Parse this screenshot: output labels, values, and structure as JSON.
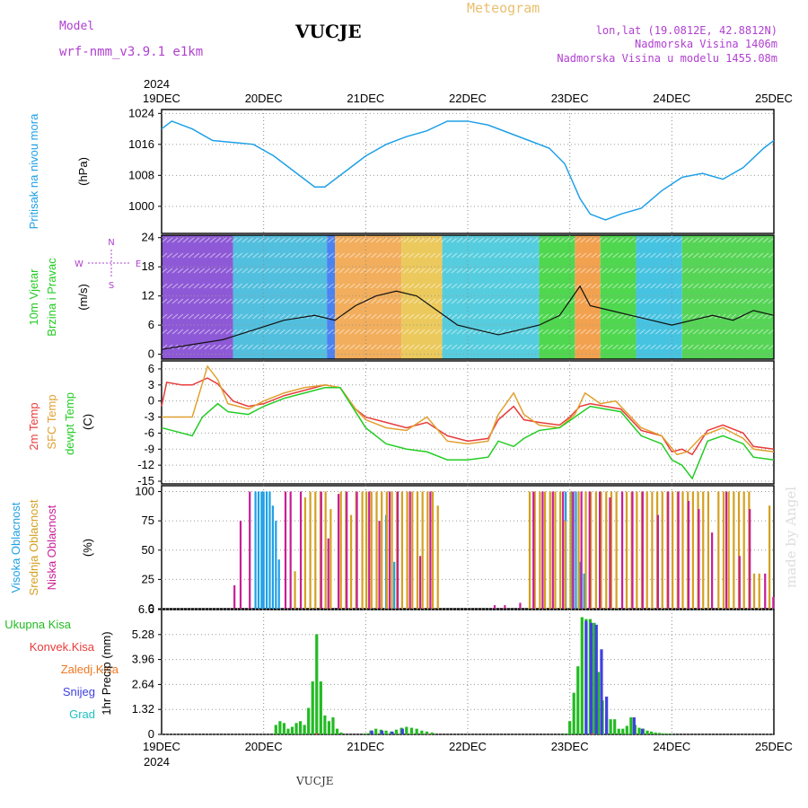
{
  "header": {
    "model_label": "Model",
    "model_name": "wrf-nmm_v3.9.1  e1km",
    "station": "VUCJE",
    "meteogram": "Meteogram",
    "lonlat": "lon,lat (19.0812E, 42.8812N)",
    "elevation": "Nadmorska Visina 1406m",
    "model_elevation": "Nadmorska Visina u modelu 1455.08m",
    "footer_station": "VUCJE",
    "watermark": "made by Angel"
  },
  "colors": {
    "pressure": "#1ea0e6",
    "wind_label": "#22cc22",
    "temp2m": "#e83c3c",
    "sfc_temp": "#e0a030",
    "dewpoint": "#22cc22",
    "high_cloud": "#1ea0e6",
    "mid_cloud": "#d4a020",
    "low_cloud": "#c81e96",
    "total_precip": "#22bb22",
    "conv_precip": "#e83c3c",
    "freezing_precip": "#f07820",
    "snow": "#4040e0",
    "graupel": "#20c0c0",
    "title_purple": "#b040d0",
    "meteogram_gold": "#e8c070"
  },
  "chart_data": {
    "type": "meteogram",
    "x_year_top": "2024",
    "x_year_bottom": "2024",
    "x_ticks": [
      "19DEC",
      "20DEC",
      "21DEC",
      "22DEC",
      "23DEC",
      "24DEC",
      "25DEC"
    ],
    "panels": [
      {
        "id": "pressure",
        "type": "line",
        "labels": [
          "Pritisak na nivou mora",
          "(hPa)"
        ],
        "ylim": [
          993,
          1025
        ],
        "yticks": [
          "1024",
          "1016",
          "1008",
          "1000"
        ],
        "ytick_values": [
          1024,
          1016,
          1008,
          1000
        ],
        "series": [
          {
            "x": [
              0,
              0.1,
              0.3,
              0.5,
              0.7,
              0.9,
              1.1,
              1.3,
              1.5,
              1.6,
              1.8,
              2.0,
              2.2,
              2.4,
              2.6,
              2.8,
              3.0,
              3.2,
              3.4,
              3.6,
              3.8,
              3.95,
              4.1,
              4.2,
              4.35,
              4.5,
              4.7,
              4.9,
              5.1,
              5.3,
              5.5,
              5.7,
              5.9,
              6.0
            ],
            "y": [
              1020,
              1022,
              1020,
              1017,
              1016.5,
              1016,
              1013,
              1009,
              1005,
              1005,
              1009,
              1013,
              1016,
              1018,
              1019.5,
              1022,
              1022,
              1021,
              1019,
              1017,
              1015,
              1011,
              1002,
              998,
              996.5,
              998,
              999.5,
              1004,
              1007.5,
              1008.5,
              1007,
              1010,
              1015,
              1017
            ]
          }
        ]
      },
      {
        "id": "wind",
        "type": "line",
        "labels": [
          "10m Vjetar",
          "Brzina i Pravac",
          "(m/s)"
        ],
        "compass": [
          "N",
          "W",
          "E",
          "S"
        ],
        "ylim": [
          -1,
          24.5
        ],
        "yticks": [
          "24",
          "18",
          "12",
          "6",
          "0"
        ],
        "ytick_values": [
          24,
          18,
          12,
          6,
          0
        ],
        "series": [
          {
            "name": "speed",
            "x": [
              0,
              0.3,
              0.6,
              0.9,
              1.2,
              1.5,
              1.7,
              1.9,
              2.1,
              2.3,
              2.5,
              2.7,
              2.9,
              3.1,
              3.3,
              3.5,
              3.7,
              3.9,
              4.1,
              4.2,
              4.4,
              4.6,
              4.8,
              5.0,
              5.2,
              5.4,
              5.6,
              5.8,
              6.0
            ],
            "y": [
              1,
              2,
              3,
              5,
              7,
              8,
              7,
              10,
              12,
              13,
              12,
              9,
              6,
              5,
              4,
              5,
              6,
              8,
              14,
              10,
              9,
              8,
              7,
              6,
              7,
              8,
              7,
              9,
              8
            ]
          }
        ]
      },
      {
        "id": "temperature",
        "type": "line",
        "labels": [
          "2m Temp",
          "SFC Temp",
          "dewpt Temp",
          "(C)"
        ],
        "ylim": [
          -15.5,
          7.5
        ],
        "yticks": [
          "6",
          "3",
          "0",
          "-3",
          "-6",
          "-9",
          "-12",
          "-15"
        ],
        "ytick_values": [
          6,
          3,
          0,
          -3,
          -6,
          -9,
          -12,
          -15
        ],
        "series": [
          {
            "name": "2m Temp",
            "x": [
              0,
              0.05,
              0.2,
              0.3,
              0.45,
              0.55,
              0.7,
              0.85,
              1.0,
              1.2,
              1.4,
              1.6,
              1.75,
              1.9,
              2.0,
              2.2,
              2.4,
              2.6,
              2.8,
              3.0,
              3.2,
              3.3,
              3.45,
              3.55,
              3.7,
              3.9,
              4.0,
              4.1,
              4.2,
              4.35,
              4.5,
              4.7,
              4.9,
              5.0,
              5.1,
              5.2,
              5.35,
              5.5,
              5.7,
              5.8,
              6.0
            ],
            "y": [
              -1,
              3.5,
              3,
              3,
              4.3,
              3.2,
              0,
              -1,
              -0.5,
              1,
              2,
              3,
              2.5,
              -1.5,
              -3,
              -4,
              -5,
              -4,
              -6.5,
              -7.5,
              -7,
              -3.5,
              -1,
              -3.5,
              -4,
              -4.5,
              -3,
              -1,
              -0.5,
              -1,
              -1.5,
              -5.5,
              -6.5,
              -9.5,
              -9,
              -10,
              -5.5,
              -4.5,
              -6,
              -8.5,
              -9
            ]
          },
          {
            "name": "SFC Temp",
            "x": [
              0,
              0.1,
              0.3,
              0.45,
              0.55,
              0.65,
              0.85,
              1.0,
              1.2,
              1.4,
              1.6,
              1.75,
              1.9,
              2.0,
              2.2,
              2.4,
              2.6,
              2.8,
              3.0,
              3.2,
              3.3,
              3.45,
              3.55,
              3.7,
              3.9,
              4.05,
              4.15,
              4.3,
              4.45,
              4.7,
              4.9,
              5.05,
              5.15,
              5.3,
              5.5,
              5.7,
              5.8,
              6.0
            ],
            "y": [
              -3,
              -3,
              -3,
              6.5,
              4,
              -0.5,
              -1.5,
              0,
              1.5,
              2.5,
              3,
              2.5,
              -1.5,
              -3.5,
              -5,
              -5.5,
              -3,
              -7.5,
              -8,
              -7.5,
              -2.5,
              1.5,
              -2.5,
              -4.5,
              -5,
              -2.5,
              1.5,
              -0.5,
              0,
              -5,
              -6.5,
              -10,
              -9.5,
              -6.5,
              -5,
              -7,
              -9,
              -9.5
            ]
          },
          {
            "name": "dewpt Temp",
            "x": [
              0,
              0.1,
              0.3,
              0.4,
              0.55,
              0.65,
              0.85,
              1.0,
              1.2,
              1.4,
              1.6,
              1.75,
              1.9,
              2.0,
              2.2,
              2.4,
              2.6,
              2.8,
              3.0,
              3.2,
              3.3,
              3.45,
              3.55,
              3.7,
              3.9,
              4.05,
              4.2,
              4.35,
              4.5,
              4.7,
              4.9,
              5.0,
              5.1,
              5.2,
              5.35,
              5.5,
              5.7,
              5.8,
              6.0
            ],
            "y": [
              -5,
              -5.5,
              -6.5,
              -3,
              -0.5,
              -2,
              -2.5,
              -1,
              0.5,
              1.5,
              2.5,
              2.5,
              -2,
              -5,
              -8,
              -9,
              -9.5,
              -11,
              -11,
              -10.5,
              -7.5,
              -8.5,
              -7,
              -5.5,
              -5,
              -3,
              -1,
              -1.5,
              -2,
              -6.5,
              -8,
              -11,
              -12,
              -14.5,
              -7.5,
              -6.5,
              -8,
              -10.5,
              -11
            ]
          }
        ]
      },
      {
        "id": "cloud",
        "type": "bar",
        "labels": [
          "Visoka Oblacnost",
          "Srednja Oblacnost",
          "Niska Oblacnost",
          "(%)"
        ],
        "ylim": [
          0,
          105
        ],
        "yticks": [
          "100",
          "75",
          "50",
          "25",
          "0"
        ],
        "ytick_values": [
          100,
          75,
          50,
          25,
          0
        ],
        "series": [
          {
            "name": "Visoka Oblacnost",
            "x": [
              0.92,
              0.95,
              0.98,
              1.0,
              1.03,
              1.06,
              1.09,
              1.12,
              1.15,
              2.2,
              2.28,
              3.96,
              4.02,
              4.06,
              4.1,
              4.14
            ],
            "y": [
              100,
              100,
              100,
              100,
              100,
              100,
              88,
              75,
              42,
              80,
              40,
              100,
              100,
              100,
              40,
              30
            ]
          },
          {
            "name": "Srednja Oblacnost",
            "x": [
              1.3,
              1.4,
              1.45,
              1.5,
              1.55,
              1.6,
              1.65,
              1.75,
              1.8,
              1.85,
              1.9,
              1.96,
              2.0,
              2.05,
              2.1,
              2.15,
              2.2,
              2.25,
              2.3,
              2.35,
              2.4,
              2.45,
              2.5,
              2.55,
              2.6,
              2.65,
              2.7,
              3.6,
              3.65,
              3.7,
              3.75,
              3.8,
              3.85,
              3.9,
              3.95,
              4.0,
              4.08,
              4.15,
              4.2,
              4.25,
              4.3,
              4.35,
              4.4,
              4.45,
              4.55,
              4.6,
              4.65,
              4.7,
              4.75,
              4.8,
              4.85,
              4.9,
              4.95,
              5.0,
              5.05,
              5.1,
              5.15,
              5.2,
              5.25,
              5.3,
              5.35,
              5.45,
              5.5,
              5.55,
              5.6,
              5.65,
              5.7,
              5.75,
              5.8,
              5.85,
              5.95
            ],
            "y": [
              32,
              95,
              100,
              100,
              100,
              100,
              85,
              100,
              100,
              80,
              100,
              100,
              100,
              100,
              100,
              100,
              100,
              100,
              100,
              100,
              100,
              100,
              100,
              100,
              100,
              100,
              88,
              100,
              100,
              100,
              100,
              100,
              100,
              100,
              75,
              100,
              100,
              100,
              100,
              100,
              100,
              100,
              100,
              100,
              100,
              100,
              100,
              100,
              100,
              100,
              100,
              100,
              100,
              100,
              100,
              100,
              100,
              100,
              100,
              100,
              100,
              100,
              100,
              100,
              100,
              100,
              100,
              100,
              30,
              30,
              88
            ]
          },
          {
            "name": "Niska Oblacnost",
            "x": [
              0.7,
              0.76,
              0.85,
              1.2,
              1.25,
              1.35,
              1.55,
              1.62,
              1.72,
              1.8,
              1.9,
              2.02,
              2.12,
              2.22,
              2.3,
              2.42,
              2.52,
              2.62,
              3.25,
              3.35,
              3.5,
              3.63,
              3.72,
              3.82,
              3.92,
              4.02,
              4.1,
              4.18,
              4.28,
              4.38,
              4.5,
              4.6,
              4.7,
              4.85,
              4.95,
              5.05,
              5.15,
              5.25,
              5.38,
              5.52,
              5.65,
              5.75,
              5.9,
              5.98
            ],
            "y": [
              20,
              75,
              100,
              100,
              100,
              100,
              100,
              60,
              98,
              100,
              100,
              100,
              75,
              100,
              100,
              100,
              45,
              100,
              3,
              3,
              5,
              100,
              100,
              100,
              100,
              100,
              100,
              100,
              100,
              95,
              100,
              100,
              100,
              80,
              100,
              100,
              92,
              85,
              65,
              100,
              45,
              85,
              30,
              10
            ]
          }
        ]
      },
      {
        "id": "precip",
        "type": "bar",
        "labels": [
          "Ukupna Kisa",
          "Konvek.Kisa",
          "Zaledj.Kisa",
          "Snijeg",
          "Grad",
          "1hr Precip (mm)"
        ],
        "ylim": [
          0,
          6.6
        ],
        "yticks": [
          "6.6",
          "5.28",
          "3.96",
          "2.64",
          "1.32",
          "0"
        ],
        "ytick_values": [
          6.6,
          5.28,
          3.96,
          2.64,
          1.32,
          0
        ],
        "series": [
          {
            "name": "Ukupna Kisa",
            "x": [
              1.12,
              1.16,
              1.2,
              1.24,
              1.28,
              1.32,
              1.36,
              1.4,
              1.44,
              1.48,
              1.52,
              1.56,
              1.6,
              1.64,
              1.68,
              1.72,
              1.76,
              2.0,
              2.05,
              2.1,
              2.15,
              2.2,
              2.25,
              2.3,
              2.35,
              2.4,
              2.45,
              2.5,
              2.55,
              2.6,
              2.65,
              3.95,
              4.0,
              4.04,
              4.08,
              4.12,
              4.16,
              4.2,
              4.24,
              4.28,
              4.32,
              4.36,
              4.4,
              4.44,
              4.48,
              4.52,
              4.56,
              4.6,
              4.64,
              4.68,
              4.72,
              4.76,
              4.8,
              4.84,
              4.88,
              4.92,
              4.96,
              5.0
            ],
            "y": [
              0.5,
              0.7,
              0.6,
              0.3,
              0.4,
              0.6,
              0.7,
              0.5,
              1.4,
              2.8,
              5.3,
              2.8,
              1.0,
              0.7,
              0.9,
              0.3,
              0.1,
              0.05,
              0.2,
              0.3,
              0.25,
              0.2,
              0.15,
              0.25,
              0.35,
              0.4,
              0.35,
              0.3,
              0.2,
              0.15,
              0.1,
              0.05,
              0.7,
              2.2,
              3.6,
              6.2,
              6.1,
              6.1,
              5.9,
              3.3,
              1.8,
              0.9,
              0.8,
              0.8,
              0.3,
              0.3,
              0.45,
              0.9,
              0.5,
              0.35,
              0.3,
              0.2,
              0.15,
              0.1,
              0.08,
              0.05,
              0.04,
              0.02
            ]
          },
          {
            "name": "Snijeg",
            "x": [
              2.05,
              2.15,
              2.25,
              2.35,
              4.15,
              4.2,
              4.25,
              4.3,
              4.35,
              4.62,
              4.7
            ],
            "y": [
              0.2,
              0.2,
              0.15,
              0.3,
              6.0,
              5.9,
              5.8,
              4.5,
              2.0,
              0.9,
              0.3
            ]
          },
          {
            "name": "Konvek.Kisa",
            "x": [
              1.5,
              2.6,
              4.2
            ],
            "y": [
              0.05,
              0.02,
              0.05
            ]
          }
        ]
      }
    ]
  }
}
